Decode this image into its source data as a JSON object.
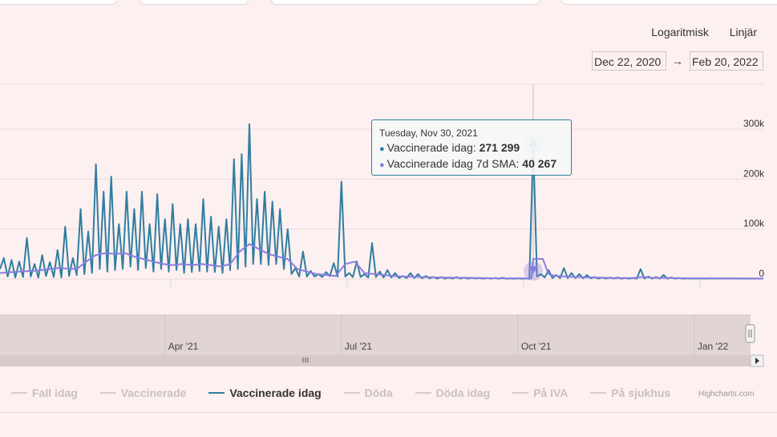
{
  "header": {
    "range_options": [
      "Logaritmisk",
      "Linjär"
    ],
    "date_from": "Dec 22, 2020",
    "date_arrow": "→",
    "date_to": "Feb 20, 2022"
  },
  "colors": {
    "series": "#2f7ea0",
    "sma": "#8a7ee0",
    "legend_inactive": "#d6cccc"
  },
  "legend": {
    "items": [
      {
        "label": "Fall idag",
        "active": false
      },
      {
        "label": "Vaccinerade",
        "active": false
      },
      {
        "label": "Vaccinerade idag",
        "active": true
      },
      {
        "label": "Döda",
        "active": false
      },
      {
        "label": "Döda idag",
        "active": false
      },
      {
        "label": "På IVA",
        "active": false
      },
      {
        "label": "På sjukhus",
        "active": false
      }
    ]
  },
  "credits": "Highcharts.com",
  "tooltip": {
    "title": "Tuesday, Nov 30, 2021",
    "rows": [
      {
        "label": "Vaccinerade idag",
        "value": "271 299",
        "color": "#2f7ea0"
      },
      {
        "label": "Vaccinerade idag 7d SMA",
        "value": "40 267",
        "color": "#8a7ee0"
      }
    ]
  },
  "chart_data": {
    "type": "line",
    "y_ticks": [
      0,
      100000,
      200000,
      300000
    ],
    "y_tick_labels": [
      "0",
      "100k",
      "200k",
      "300k"
    ],
    "ylim": [
      0,
      390000
    ],
    "x_unit": "days since 2021-01-03 (approx.)",
    "xlim": [
      0,
      398
    ],
    "navigator_labels": [
      {
        "label": "Apr '21",
        "x": 86
      },
      {
        "label": "Jul '21",
        "x": 178
      },
      {
        "label": "Oct '21",
        "x": 270
      },
      {
        "label": "Jan '22",
        "x": 362
      }
    ],
    "series": [
      {
        "name": "Vaccinerade idag",
        "points": [
          [
            0,
            20000
          ],
          [
            2,
            42000
          ],
          [
            4,
            5000
          ],
          [
            6,
            38000
          ],
          [
            8,
            3000
          ],
          [
            10,
            35000
          ],
          [
            12,
            4000
          ],
          [
            14,
            82000
          ],
          [
            16,
            5000
          ],
          [
            18,
            30000
          ],
          [
            20,
            3000
          ],
          [
            22,
            48000
          ],
          [
            24,
            6000
          ],
          [
            26,
            34000
          ],
          [
            28,
            4000
          ],
          [
            30,
            58000
          ],
          [
            32,
            3000
          ],
          [
            34,
            105000
          ],
          [
            36,
            6000
          ],
          [
            38,
            42000
          ],
          [
            40,
            8000
          ],
          [
            42,
            140000
          ],
          [
            44,
            10000
          ],
          [
            46,
            95000
          ],
          [
            48,
            12000
          ],
          [
            50,
            230000
          ],
          [
            52,
            20000
          ],
          [
            54,
            175000
          ],
          [
            56,
            15000
          ],
          [
            58,
            205000
          ],
          [
            60,
            18000
          ],
          [
            62,
            110000
          ],
          [
            64,
            20000
          ],
          [
            66,
            175000
          ],
          [
            68,
            25000
          ],
          [
            70,
            140000
          ],
          [
            72,
            18000
          ],
          [
            74,
            175000
          ],
          [
            76,
            22000
          ],
          [
            78,
            110000
          ],
          [
            80,
            15000
          ],
          [
            82,
            170000
          ],
          [
            84,
            20000
          ],
          [
            86,
            120000
          ],
          [
            88,
            15000
          ],
          [
            90,
            150000
          ],
          [
            92,
            18000
          ],
          [
            94,
            110000
          ],
          [
            96,
            12000
          ],
          [
            98,
            120000
          ],
          [
            100,
            14000
          ],
          [
            102,
            110000
          ],
          [
            104,
            16000
          ],
          [
            106,
            160000
          ],
          [
            108,
            15000
          ],
          [
            110,
            125000
          ],
          [
            112,
            14000
          ],
          [
            114,
            105000
          ],
          [
            116,
            12000
          ],
          [
            118,
            120000
          ],
          [
            120,
            18000
          ],
          [
            122,
            240000
          ],
          [
            124,
            20000
          ],
          [
            126,
            250000
          ],
          [
            128,
            25000
          ],
          [
            130,
            310000
          ],
          [
            132,
            30000
          ],
          [
            134,
            160000
          ],
          [
            136,
            30000
          ],
          [
            138,
            175000
          ],
          [
            140,
            28000
          ],
          [
            142,
            155000
          ],
          [
            144,
            30000
          ],
          [
            146,
            140000
          ],
          [
            148,
            20000
          ],
          [
            150,
            100000
          ],
          [
            152,
            10000
          ],
          [
            154,
            22000
          ],
          [
            156,
            5000
          ],
          [
            158,
            55000
          ],
          [
            160,
            5000
          ],
          [
            162,
            16000
          ],
          [
            164,
            5000
          ],
          [
            166,
            10000
          ],
          [
            168,
            4000
          ],
          [
            170,
            14000
          ],
          [
            172,
            6000
          ],
          [
            174,
            32000
          ],
          [
            176,
            5000
          ],
          [
            178,
            195000
          ],
          [
            180,
            5000
          ],
          [
            182,
            12000
          ],
          [
            184,
            4000
          ],
          [
            186,
            35000
          ],
          [
            188,
            4000
          ],
          [
            190,
            10000
          ],
          [
            192,
            3000
          ],
          [
            194,
            72000
          ],
          [
            196,
            4000
          ],
          [
            198,
            15000
          ],
          [
            200,
            3000
          ],
          [
            202,
            18000
          ],
          [
            204,
            3000
          ],
          [
            206,
            12000
          ],
          [
            208,
            2000
          ],
          [
            210,
            6000
          ],
          [
            212,
            2000
          ],
          [
            214,
            12000
          ],
          [
            216,
            2000
          ],
          [
            218,
            10000
          ],
          [
            220,
            1500
          ],
          [
            222,
            6000
          ],
          [
            224,
            1500
          ],
          [
            226,
            4000
          ],
          [
            228,
            1000
          ],
          [
            230,
            4000
          ],
          [
            232,
            1000
          ],
          [
            234,
            3000
          ],
          [
            236,
            1000
          ],
          [
            238,
            4000
          ],
          [
            240,
            1000
          ],
          [
            242,
            3000
          ],
          [
            244,
            800
          ],
          [
            246,
            2500
          ],
          [
            248,
            1000
          ],
          [
            250,
            2000
          ],
          [
            252,
            800
          ],
          [
            254,
            2000
          ],
          [
            256,
            800
          ],
          [
            258,
            2000
          ],
          [
            260,
            800
          ],
          [
            262,
            2500
          ],
          [
            264,
            600
          ],
          [
            266,
            1500
          ],
          [
            268,
            600
          ],
          [
            270,
            1500
          ],
          [
            272,
            600
          ],
          [
            274,
            1500
          ],
          [
            276,
            500
          ],
          [
            278,
            271299
          ],
          [
            280,
            5000
          ],
          [
            282,
            10000
          ],
          [
            284,
            3000
          ],
          [
            286,
            18000
          ],
          [
            288,
            2000
          ],
          [
            290,
            8000
          ],
          [
            292,
            2000
          ],
          [
            294,
            22000
          ],
          [
            296,
            2000
          ],
          [
            298,
            12000
          ],
          [
            300,
            2000
          ],
          [
            302,
            10000
          ],
          [
            304,
            1500
          ],
          [
            306,
            8000
          ],
          [
            308,
            1500
          ],
          [
            310,
            4000
          ],
          [
            312,
            1000
          ],
          [
            314,
            3000
          ],
          [
            316,
            1000
          ],
          [
            318,
            3000
          ],
          [
            320,
            1000
          ],
          [
            322,
            3000
          ],
          [
            324,
            800
          ],
          [
            326,
            2000
          ],
          [
            328,
            800
          ],
          [
            330,
            2000
          ],
          [
            332,
            800
          ],
          [
            334,
            20000
          ],
          [
            336,
            1000
          ],
          [
            338,
            5000
          ],
          [
            340,
            1000
          ],
          [
            342,
            4000
          ],
          [
            344,
            1000
          ],
          [
            346,
            8000
          ],
          [
            348,
            800
          ],
          [
            350,
            3000
          ],
          [
            352,
            800
          ],
          [
            354,
            2000
          ],
          [
            356,
            800
          ],
          [
            358,
            1500
          ],
          [
            360,
            800
          ],
          [
            362,
            1500
          ],
          [
            364,
            800
          ],
          [
            366,
            1500
          ],
          [
            368,
            800
          ],
          [
            370,
            1500
          ],
          [
            372,
            800
          ],
          [
            374,
            1500
          ],
          [
            376,
            800
          ],
          [
            378,
            1500
          ],
          [
            380,
            800
          ],
          [
            382,
            1500
          ],
          [
            384,
            800
          ],
          [
            386,
            1200
          ],
          [
            388,
            800
          ],
          [
            390,
            1000
          ],
          [
            392,
            800
          ],
          [
            394,
            1000
          ],
          [
            396,
            800
          ],
          [
            398,
            1000
          ]
        ]
      },
      {
        "name": "Vaccinerade idag 7d SMA",
        "points": [
          [
            0,
            12000
          ],
          [
            10,
            15000
          ],
          [
            20,
            17000
          ],
          [
            30,
            22000
          ],
          [
            40,
            20000
          ],
          [
            45,
            35000
          ],
          [
            50,
            48000
          ],
          [
            55,
            52000
          ],
          [
            60,
            50000
          ],
          [
            65,
            52000
          ],
          [
            70,
            45000
          ],
          [
            75,
            40000
          ],
          [
            80,
            35000
          ],
          [
            85,
            30000
          ],
          [
            90,
            28000
          ],
          [
            95,
            30000
          ],
          [
            100,
            28000
          ],
          [
            105,
            30000
          ],
          [
            110,
            28000
          ],
          [
            115,
            25000
          ],
          [
            120,
            30000
          ],
          [
            125,
            55000
          ],
          [
            130,
            70000
          ],
          [
            135,
            60000
          ],
          [
            140,
            50000
          ],
          [
            145,
            45000
          ],
          [
            150,
            40000
          ],
          [
            155,
            20000
          ],
          [
            160,
            15000
          ],
          [
            165,
            10000
          ],
          [
            170,
            8000
          ],
          [
            175,
            6000
          ],
          [
            180,
            30000
          ],
          [
            185,
            35000
          ],
          [
            190,
            12000
          ],
          [
            195,
            10000
          ],
          [
            200,
            8000
          ],
          [
            205,
            6000
          ],
          [
            210,
            5000
          ],
          [
            220,
            4000
          ],
          [
            230,
            3000
          ],
          [
            240,
            2500
          ],
          [
            250,
            2000
          ],
          [
            260,
            1500
          ],
          [
            270,
            1500
          ],
          [
            277,
            1200
          ],
          [
            278,
            40267
          ],
          [
            283,
            40267
          ],
          [
            286,
            10000
          ],
          [
            290,
            6000
          ],
          [
            300,
            4000
          ],
          [
            310,
            3000
          ],
          [
            320,
            2000
          ],
          [
            330,
            2000
          ],
          [
            335,
            4000
          ],
          [
            340,
            2500
          ],
          [
            350,
            2000
          ],
          [
            360,
            1500
          ],
          [
            370,
            1500
          ],
          [
            380,
            1200
          ],
          [
            390,
            1200
          ],
          [
            398,
            1000
          ]
        ]
      }
    ],
    "hover_x": 278,
    "grid": true
  }
}
